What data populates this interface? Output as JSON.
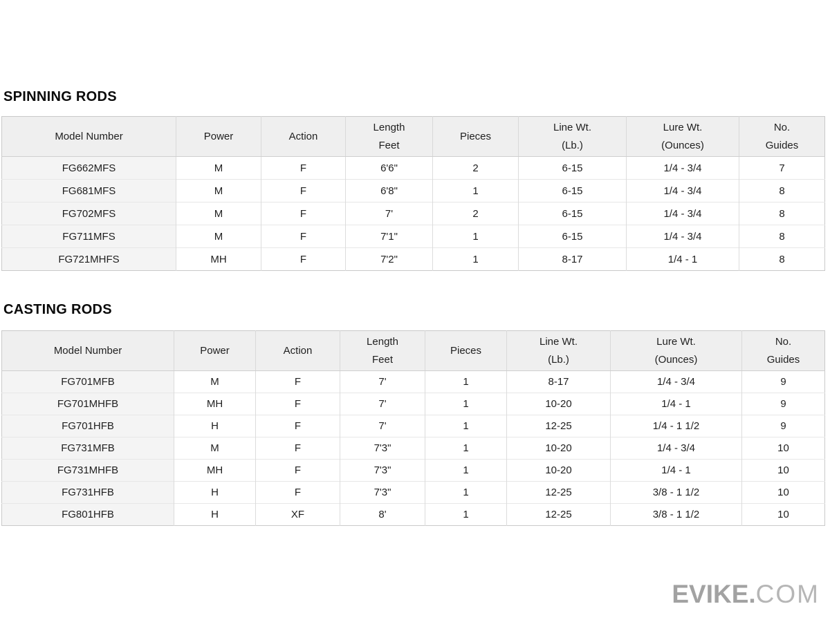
{
  "page": {
    "background_color": "#ffffff",
    "header_bg_color": "#efefef",
    "first_column_bg_color": "#f4f4f4",
    "border_color": "#c9c9c9",
    "text_color": "#1f1f1f"
  },
  "tables": [
    {
      "title": "SPINNING RODS",
      "headers": [
        "Model Number",
        "Power",
        "Action",
        "Length\nFeet",
        "Pieces",
        "Line Wt.\n(Lb.)",
        "Lure Wt.\n(Ounces)",
        "No.\nGuides"
      ],
      "rows": [
        [
          "FG662MFS",
          "M",
          "F",
          "6'6\"",
          "2",
          "6-15",
          "1/4 - 3/4",
          "7"
        ],
        [
          "FG681MFS",
          "M",
          "F",
          "6'8\"",
          "1",
          "6-15",
          "1/4 - 3/4",
          "8"
        ],
        [
          "FG702MFS",
          "M",
          "F",
          "7'",
          "2",
          "6-15",
          "1/4 - 3/4",
          "8"
        ],
        [
          "FG711MFS",
          "M",
          "F",
          "7'1\"",
          "1",
          "6-15",
          "1/4 - 3/4",
          "8"
        ],
        [
          "FG721MHFS",
          "MH",
          "F",
          "7'2\"",
          "1",
          "8-17",
          "1/4 - 1",
          "8"
        ]
      ]
    },
    {
      "title": "CASTING RODS",
      "headers": [
        "Model Number",
        "Power",
        "Action",
        "Length\nFeet",
        "Pieces",
        "Line Wt.\n(Lb.)",
        "Lure Wt.\n(Ounces)",
        "No.\nGuides"
      ],
      "rows": [
        [
          "FG701MFB",
          "M",
          "F",
          "7'",
          "1",
          "8-17",
          "1/4 - 3/4",
          "9"
        ],
        [
          "FG701MHFB",
          "MH",
          "F",
          "7'",
          "1",
          "10-20",
          "1/4 - 1",
          "9"
        ],
        [
          "FG701HFB",
          "H",
          "F",
          "7'",
          "1",
          "12-25",
          "1/4 - 1 1/2",
          "9"
        ],
        [
          "FG731MFB",
          "M",
          "F",
          "7'3\"",
          "1",
          "10-20",
          "1/4 - 3/4",
          "10"
        ],
        [
          "FG731MHFB",
          "MH",
          "F",
          "7'3\"",
          "1",
          "10-20",
          "1/4 - 1",
          "10"
        ],
        [
          "FG731HFB",
          "H",
          "F",
          "7'3\"",
          "1",
          "12-25",
          "3/8 - 1 1/2",
          "10"
        ],
        [
          "FG801HFB",
          "H",
          "XF",
          "8'",
          "1",
          "12-25",
          "3/8 - 1 1/2",
          "10"
        ]
      ]
    }
  ],
  "watermark": {
    "bold": "EVIKE.",
    "light": "COM",
    "bold_color": "#a2a2a2",
    "light_color": "#b6b6b6"
  }
}
